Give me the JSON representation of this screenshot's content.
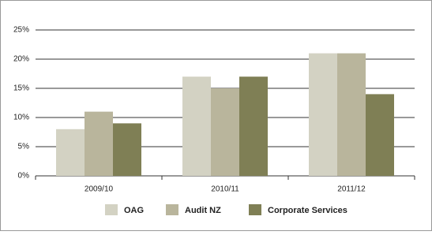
{
  "chart_data": {
    "type": "bar",
    "categories": [
      "2009/10",
      "2010/11",
      "2011/12"
    ],
    "series": [
      {
        "name": "OAG",
        "color": "#d3d2c3",
        "values": [
          8,
          17,
          21
        ]
      },
      {
        "name": "Audit NZ",
        "color": "#b9b59c",
        "values": [
          11,
          15,
          21
        ]
      },
      {
        "name": "Corporate Services",
        "color": "#7f7f55",
        "values": [
          9,
          17,
          14
        ]
      }
    ],
    "ylim": [
      0,
      25
    ],
    "yticks": [
      {
        "value": 0,
        "label": "0%"
      },
      {
        "value": 5,
        "label": "5%"
      },
      {
        "value": 10,
        "label": "10%"
      },
      {
        "value": 15,
        "label": "15%"
      },
      {
        "value": 20,
        "label": "20%"
      },
      {
        "value": 25,
        "label": "25%"
      }
    ],
    "grid": true,
    "legend": "bottom"
  }
}
